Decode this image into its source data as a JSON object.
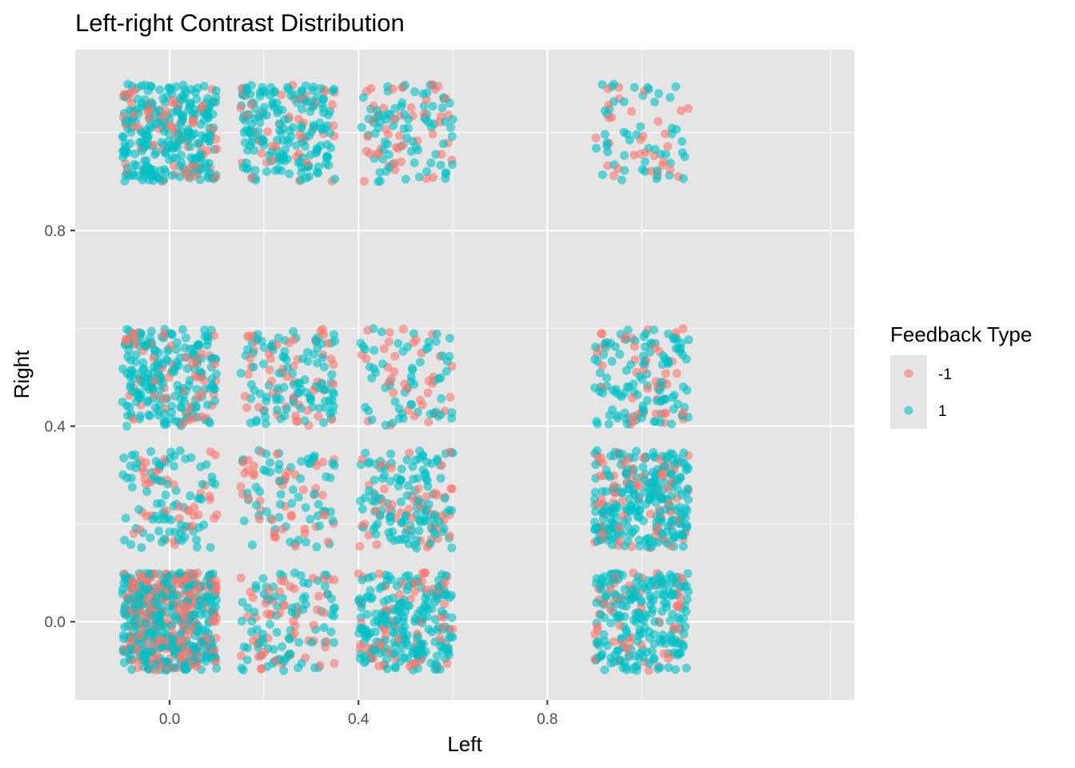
{
  "chart_data": {
    "type": "scatter",
    "title": "Left-right Contrast Distribution",
    "xlabel": "Left",
    "ylabel": "Right",
    "xlim": [
      -0.2,
      1.45
    ],
    "ylim": [
      -0.16,
      1.17
    ],
    "x_ticks": [
      0.0,
      0.4,
      0.8
    ],
    "x_tick_labels": [
      "0.0",
      "0.4",
      "0.8"
    ],
    "y_ticks": [
      0.0,
      0.4,
      0.8
    ],
    "y_tick_labels": [
      "0.0",
      "0.4",
      "0.8"
    ],
    "x_minor_ticks": [
      0.2,
      0.6,
      1.0,
      1.4
    ],
    "y_minor_ticks": [
      0.2,
      0.6,
      1.0
    ],
    "grid": true,
    "panel_background": "#e5e5e5",
    "jitter": 0.1,
    "point_alpha": 0.6,
    "legend": {
      "title": "Feedback Type",
      "placement": "right",
      "entries": [
        {
          "label": "-1",
          "color": "#f8766d"
        },
        {
          "label": "1",
          "color": "#00bfc4"
        }
      ]
    },
    "series": [
      {
        "name": "-1",
        "color": "#f8766d"
      },
      {
        "name": "1",
        "color": "#00bfc4"
      }
    ],
    "cells": [
      {
        "left": 0.0,
        "right": 0.0,
        "count_neg": 260,
        "count_pos": 340
      },
      {
        "left": 0.25,
        "right": 0.0,
        "count_neg": 55,
        "count_pos": 85
      },
      {
        "left": 0.5,
        "right": 0.0,
        "count_neg": 70,
        "count_pos": 210
      },
      {
        "left": 1.0,
        "right": 0.0,
        "count_neg": 55,
        "count_pos": 210
      },
      {
        "left": 0.0,
        "right": 0.25,
        "count_neg": 40,
        "count_pos": 80
      },
      {
        "left": 0.25,
        "right": 0.25,
        "count_neg": 45,
        "count_pos": 60
      },
      {
        "left": 0.5,
        "right": 0.25,
        "count_neg": 50,
        "count_pos": 120
      },
      {
        "left": 1.0,
        "right": 0.25,
        "count_neg": 80,
        "count_pos": 230
      },
      {
        "left": 0.0,
        "right": 0.5,
        "count_neg": 60,
        "count_pos": 200
      },
      {
        "left": 0.25,
        "right": 0.5,
        "count_neg": 50,
        "count_pos": 100
      },
      {
        "left": 0.5,
        "right": 0.5,
        "count_neg": 35,
        "count_pos": 60
      },
      {
        "left": 1.0,
        "right": 0.5,
        "count_neg": 45,
        "count_pos": 110
      },
      {
        "left": 0.0,
        "right": 1.0,
        "count_neg": 70,
        "count_pos": 250
      },
      {
        "left": 0.25,
        "right": 1.0,
        "count_neg": 45,
        "count_pos": 175
      },
      {
        "left": 0.5,
        "right": 1.0,
        "count_neg": 45,
        "count_pos": 80
      },
      {
        "left": 1.0,
        "right": 1.0,
        "count_neg": 30,
        "count_pos": 50
      }
    ]
  }
}
